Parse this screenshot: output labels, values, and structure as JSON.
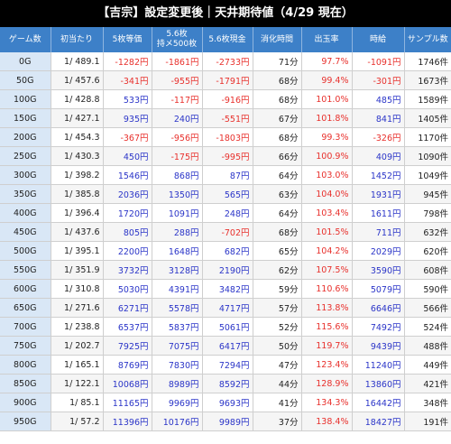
{
  "title": "【吉宗】設定変更後｜天井期待値（4/29 現在）",
  "headers": [
    "ゲーム数",
    "初当たり",
    "5枚等価",
    "5.6枚\n持メ500枚",
    "5.6枚現金",
    "消化時間",
    "出玉率",
    "時給",
    "サンプル数"
  ],
  "rows": [
    [
      "0G",
      "1/ 489.1",
      "-1282円",
      "-1861円",
      "-2733円",
      "71分",
      "97.7%",
      "-1091円",
      "1746件"
    ],
    [
      "50G",
      "1/ 457.6",
      "-341円",
      "-955円",
      "-1791円",
      "68分",
      "99.4%",
      "-301円",
      "1673件"
    ],
    [
      "100G",
      "1/ 428.8",
      "533円",
      "-117円",
      "-916円",
      "68分",
      "101.0%",
      "485円",
      "1589件"
    ],
    [
      "150G",
      "1/ 427.1",
      "935円",
      "240円",
      "-551円",
      "67分",
      "101.8%",
      "841円",
      "1405件"
    ],
    [
      "200G",
      "1/ 454.3",
      "-367円",
      "-956円",
      "-1803円",
      "68分",
      "99.3%",
      "-326円",
      "1170件"
    ],
    [
      "250G",
      "1/ 430.3",
      "450円",
      "-175円",
      "-995円",
      "66分",
      "100.9%",
      "409円",
      "1090件"
    ],
    [
      "300G",
      "1/ 398.2",
      "1546円",
      "868円",
      "87円",
      "64分",
      "103.0%",
      "1452円",
      "1049件"
    ],
    [
      "350G",
      "1/ 385.8",
      "2036円",
      "1350円",
      "565円",
      "63分",
      "104.0%",
      "1931円",
      "945件"
    ],
    [
      "400G",
      "1/ 396.4",
      "1720円",
      "1091円",
      "248円",
      "64分",
      "103.4%",
      "1611円",
      "798件"
    ],
    [
      "450G",
      "1/ 437.6",
      "805円",
      "288円",
      "-702円",
      "68分",
      "101.5%",
      "711円",
      "632件"
    ],
    [
      "500G",
      "1/ 395.1",
      "2200円",
      "1648円",
      "682円",
      "65分",
      "104.2%",
      "2029円",
      "620件"
    ],
    [
      "550G",
      "1/ 351.9",
      "3732円",
      "3128円",
      "2190円",
      "62分",
      "107.5%",
      "3590円",
      "608件"
    ],
    [
      "600G",
      "1/ 310.8",
      "5030円",
      "4391円",
      "3482円",
      "59分",
      "110.6%",
      "5079円",
      "590件"
    ],
    [
      "650G",
      "1/ 271.6",
      "6271円",
      "5578円",
      "4717円",
      "57分",
      "113.8%",
      "6646円",
      "566件"
    ],
    [
      "700G",
      "1/ 238.8",
      "6537円",
      "5837円",
      "5061円",
      "52分",
      "115.6%",
      "7492円",
      "524件"
    ],
    [
      "750G",
      "1/ 202.7",
      "7925円",
      "7075円",
      "6417円",
      "50分",
      "119.7%",
      "9439円",
      "488件"
    ],
    [
      "800G",
      "1/ 165.1",
      "8769円",
      "7830円",
      "7294円",
      "47分",
      "123.4%",
      "11240円",
      "449件"
    ],
    [
      "850G",
      "1/ 122.1",
      "10068円",
      "8989円",
      "8592円",
      "44分",
      "128.9%",
      "13860円",
      "421件"
    ],
    [
      "900G",
      "1/ 85.1",
      "11165円",
      "9969円",
      "9693円",
      "41分",
      "134.3%",
      "16442円",
      "348件"
    ],
    [
      "950G",
      "1/ 57.2",
      "11396円",
      "10176円",
      "9989円",
      "37分",
      "138.4%",
      "18427円",
      "191件"
    ]
  ],
  "colors": {
    "header_bg": "#3d80c8",
    "title_bg": "#000000",
    "first_col_bg": "#d9e7f6",
    "negative": "#e8302c",
    "positive": "#2b35c8"
  }
}
